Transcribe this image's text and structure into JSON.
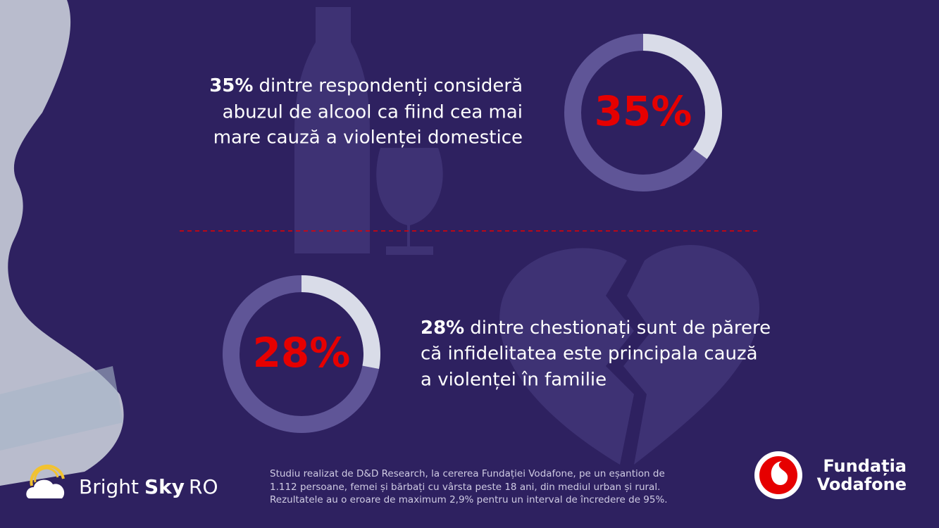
{
  "chart_data": [
    {
      "type": "donut",
      "values": [
        35
      ],
      "value_labels": [
        "35%"
      ],
      "color": "#d9dce8",
      "track_color": "#5f5597"
    },
    {
      "type": "donut",
      "values": [
        28
      ],
      "value_labels": [
        "28%"
      ],
      "color": "#d9dce8",
      "track_color": "#5f5597"
    }
  ],
  "statements": [
    {
      "highlight": "35%",
      "lines": [
        "dintre respondenți consideră",
        "abuzul de alcool ca fiind cea mai",
        "mare cauză a violenței domestice"
      ]
    },
    {
      "highlight": "28%",
      "lines": [
        "dintre chestionați sunt de părere",
        "că infidelitatea este principala cauză",
        "a violenței în familie"
      ]
    }
  ],
  "footnote": [
    "Studiu realizat de D&D Research, la cererea Fundației Vodafone, pe un eșantion de",
    "1.112 persoane, femei și bărbați cu vârsta peste 18 ani, din mediul urban și rural.",
    "Rezultatele au o eroare de maximum 2,9% pentru un interval de încredere de 95%."
  ],
  "logos": {
    "bright_sky": {
      "light": "Bright",
      "bold": "Sky",
      "suffix": "RO"
    },
    "foundation": [
      "Fundația",
      "Vodafone"
    ]
  }
}
